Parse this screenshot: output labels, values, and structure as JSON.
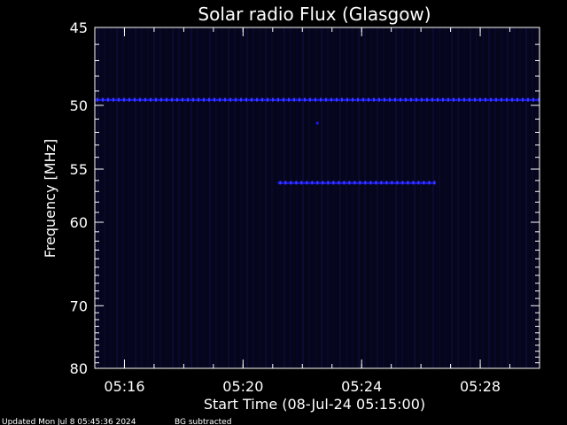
{
  "chart_data": {
    "type": "heatmap",
    "title": "Solar radio Flux (Glasgow)",
    "xlabel": "Start Time (08-Jul-24 05:15:00)",
    "ylabel": "Frequency [MHz]",
    "xlim": [
      "05:15:00",
      "05:30:00"
    ],
    "ylim": [
      45,
      80
    ],
    "y_reversed": true,
    "x_ticks": [
      "05:16",
      "05:20",
      "05:24",
      "05:28"
    ],
    "y_ticks": [
      45,
      50,
      55,
      60,
      70,
      80
    ],
    "grid": false,
    "colors": {
      "background": "#000000",
      "plot_bg": "#05051c",
      "signal": "#1c1cff",
      "axes": "#ffffff"
    },
    "features": [
      {
        "kind": "band",
        "frequency_mhz": 49.6,
        "t_start": "05:15:00",
        "t_end": "05:30:00"
      },
      {
        "kind": "band",
        "frequency_mhz": 56.2,
        "t_start": "05:21:10",
        "t_end": "05:26:30"
      },
      {
        "kind": "point",
        "frequency_mhz": 51.3,
        "t": "05:22:30"
      }
    ]
  },
  "footer": {
    "updated": "Updated Mon Jul  8 05:45:36 2024",
    "bg": "BG subtracted"
  }
}
